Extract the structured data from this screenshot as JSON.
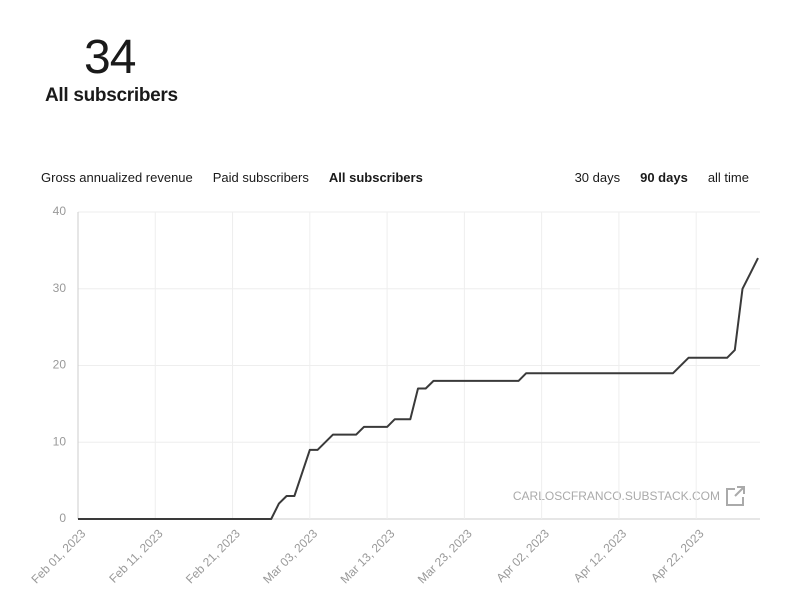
{
  "header": {
    "value": 34,
    "label": "All subscribers"
  },
  "metrics": {
    "items": [
      "Gross annualized revenue",
      "Paid subscribers",
      "All subscribers"
    ],
    "selected": 2
  },
  "ranges": {
    "items": [
      "30 days",
      "90 days",
      "all time"
    ],
    "selected": 1
  },
  "watermark": "CARLOSCFRANCO.SUBSTACK.COM",
  "chart_data": {
    "type": "line",
    "color": "#3a3a3a",
    "grid": true,
    "x": [
      "2023-02-01",
      "2023-02-26",
      "2023-02-27",
      "2023-02-28",
      "2023-03-01",
      "2023-03-03",
      "2023-03-04",
      "2023-03-06",
      "2023-03-09",
      "2023-03-10",
      "2023-03-13",
      "2023-03-14",
      "2023-03-16",
      "2023-03-17",
      "2023-03-18",
      "2023-03-19",
      "2023-03-20",
      "2023-03-30",
      "2023-03-31",
      "2023-04-19",
      "2023-04-21",
      "2023-04-22",
      "2023-04-26",
      "2023-04-27",
      "2023-04-28",
      "2023-04-29",
      "2023-04-30"
    ],
    "values": [
      0,
      0,
      2,
      3,
      3,
      9,
      9,
      11,
      11,
      12,
      12,
      13,
      13,
      17,
      17,
      18,
      18,
      18,
      19,
      19,
      21,
      21,
      21,
      22,
      30,
      32,
      34
    ],
    "xlim": [
      "2023-02-01",
      "2023-04-30"
    ],
    "xticks": [
      {
        "value": "2023-02-01",
        "label": "Feb 01, 2023"
      },
      {
        "value": "2023-02-11",
        "label": "Feb 11, 2023"
      },
      {
        "value": "2023-02-21",
        "label": "Feb 21, 2023"
      },
      {
        "value": "2023-03-03",
        "label": "Mar 03, 2023"
      },
      {
        "value": "2023-03-13",
        "label": "Mar 13, 2023"
      },
      {
        "value": "2023-03-23",
        "label": "Mar 23, 2023"
      },
      {
        "value": "2023-04-02",
        "label": "Apr 02, 2023"
      },
      {
        "value": "2023-04-12",
        "label": "Apr 12, 2023"
      },
      {
        "value": "2023-04-22",
        "label": "Apr 22, 2023"
      }
    ],
    "ylim": [
      0,
      40
    ],
    "yticks": [
      0,
      10,
      20,
      30,
      40
    ]
  }
}
